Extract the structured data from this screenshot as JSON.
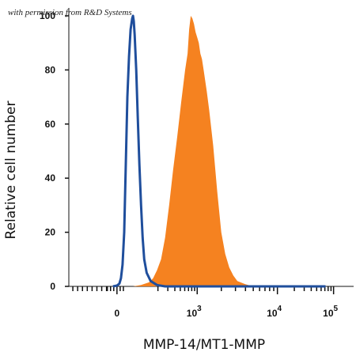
{
  "chart_data": {
    "type": "area",
    "annotation": "with permission from R&D Systems",
    "xlabel": "MMP-14/MT1-MMP",
    "ylabel": "Relative cell number",
    "ylim": [
      0,
      100
    ],
    "y_ticks": [
      0,
      20,
      40,
      60,
      80,
      100
    ],
    "x_scale": "biexponential",
    "x_ticks": [
      {
        "label": "0",
        "exp": ""
      },
      {
        "label": "10",
        "exp": "3"
      },
      {
        "label": "10",
        "exp": "4"
      },
      {
        "label": "10",
        "exp": "5"
      }
    ],
    "grid": false,
    "legend": "none",
    "series": [
      {
        "style": "filled",
        "color": "#f58220",
        "points": [
          [
            0.2,
            0
          ],
          [
            0.3,
            0.5
          ],
          [
            0.4,
            1.5
          ],
          [
            0.45,
            3
          ],
          [
            0.5,
            6
          ],
          [
            0.55,
            10
          ],
          [
            0.6,
            18
          ],
          [
            0.65,
            30
          ],
          [
            0.7,
            43
          ],
          [
            0.75,
            55
          ],
          [
            0.8,
            68
          ],
          [
            0.85,
            80
          ],
          [
            0.88,
            86
          ],
          [
            0.9,
            95
          ],
          [
            0.92,
            100
          ],
          [
            0.94,
            99
          ],
          [
            0.96,
            97
          ],
          [
            0.98,
            94
          ],
          [
            1.0,
            92
          ],
          [
            1.02,
            90
          ],
          [
            1.04,
            86
          ],
          [
            1.06,
            84
          ],
          [
            1.08,
            80
          ],
          [
            1.1,
            76
          ],
          [
            1.12,
            72
          ],
          [
            1.15,
            65
          ],
          [
            1.2,
            52
          ],
          [
            1.25,
            35
          ],
          [
            1.3,
            20
          ],
          [
            1.35,
            12
          ],
          [
            1.4,
            7
          ],
          [
            1.45,
            4
          ],
          [
            1.5,
            2
          ],
          [
            1.6,
            0.8
          ],
          [
            1.7,
            0
          ]
        ]
      },
      {
        "style": "line",
        "color": "#1f4e9c",
        "points": [
          [
            -0.05,
            0
          ],
          [
            0.0,
            0.3
          ],
          [
            0.03,
            1
          ],
          [
            0.05,
            3
          ],
          [
            0.07,
            8
          ],
          [
            0.09,
            20
          ],
          [
            0.11,
            45
          ],
          [
            0.13,
            70
          ],
          [
            0.15,
            85
          ],
          [
            0.17,
            95
          ],
          [
            0.19,
            99
          ],
          [
            0.2,
            100
          ],
          [
            0.21,
            98
          ],
          [
            0.22,
            93
          ],
          [
            0.24,
            80
          ],
          [
            0.26,
            62
          ],
          [
            0.28,
            45
          ],
          [
            0.3,
            30
          ],
          [
            0.32,
            18
          ],
          [
            0.34,
            10
          ],
          [
            0.37,
            5
          ],
          [
            0.42,
            2
          ],
          [
            0.5,
            0.5
          ],
          [
            0.6,
            0
          ],
          [
            2.6,
            0
          ]
        ]
      }
    ]
  }
}
